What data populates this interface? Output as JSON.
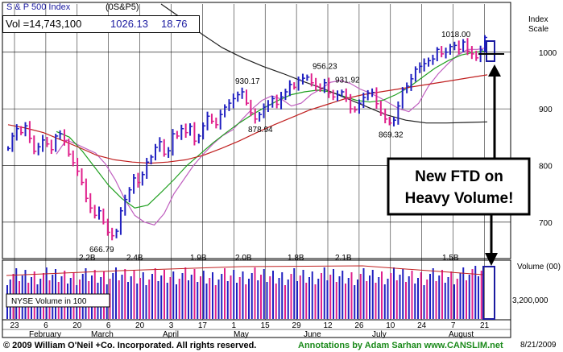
{
  "header": {
    "index_name": "S & P 500 Index",
    "symbol": "(0S&P5)",
    "volume_label": "Vol =14,743,100",
    "last_price": "1026.13",
    "change": "18.76",
    "scale_title": "Index\nScale"
  },
  "annotation": {
    "callout": "New FTD on\nHeavy Volume!"
  },
  "volume_box": {
    "legend": "NYSE Volume in 100",
    "scale_title": "Volume (00)",
    "scale_value": "3,200,000"
  },
  "footer": {
    "copyright": "© 2009 William O'Neil +Co. Incorporated. All rights reserved.",
    "annotations": "Annotations by Adam Sarhan www.CANSLIM.net",
    "date": "8/21/2009"
  },
  "colors": {
    "up_bar": "#2020c0",
    "down_bar": "#e0208c",
    "ma_50": "#20a020",
    "ma_200": "#c02020",
    "ma_10": "#c060c0",
    "ma_long": "#202020",
    "annotation": "#000000"
  },
  "chart_data": [
    {
      "type": "ohlc",
      "title": "S & P 500 Index",
      "y_axis_title": "Index Scale",
      "y_ticks": [
        700,
        800,
        900,
        1000
      ],
      "ylim": [
        640,
        1085
      ],
      "x_ticks": [
        "23",
        "6",
        "20",
        "6",
        "20",
        "3",
        "17",
        "1",
        "15",
        "29",
        "12",
        "26",
        "10",
        "24",
        "7",
        "21"
      ],
      "month_labels": [
        "February",
        "March",
        "April",
        "May",
        "June",
        "July",
        "August"
      ],
      "price_labels": [
        {
          "text": "666.79",
          "value": 666.79
        },
        {
          "text": "930.17",
          "value": 930.17
        },
        {
          "text": "878.94",
          "value": 878.94
        },
        {
          "text": "956.23",
          "value": 956.23
        },
        {
          "text": "931.92",
          "value": 931.92
        },
        {
          "text": "869.32",
          "value": 869.32
        },
        {
          "text": "1018.00",
          "value": 1018.0
        }
      ],
      "series": [
        {
          "name": "close",
          "values": [
            830,
            852,
            865,
            858,
            870,
            848,
            825,
            833,
            845,
            838,
            828,
            852,
            856,
            843,
            820,
            805,
            790,
            770,
            742,
            725,
            712,
            720,
            700,
            682,
            676,
            684,
            720,
            740,
            757,
            778,
            770,
            784,
            806,
            815,
            832,
            842,
            820,
            826,
            856,
            852,
            865,
            858,
            869,
            843,
            852,
            870,
            887,
            878,
            872,
            890,
            903,
            910,
            918,
            925,
            930,
            910,
            893,
            882,
            890,
            903,
            907,
            918,
            908,
            921,
            930,
            943,
            938,
            951,
            954,
            956,
            946,
            940,
            935,
            946,
            928,
            921,
            925,
            930,
            918,
            900,
            898,
            910,
            920,
            928,
            929,
            909,
            893,
            882,
            875,
            880,
            905,
            934,
            940,
            953,
            970,
            975,
            980,
            985,
            988,
            1005,
            997,
            1000,
            1010,
            1012,
            1005,
            1018,
            1002,
            997,
            990,
            1004,
            1026
          ]
        },
        {
          "name": "10-day MA",
          "values": [
            820,
            845,
            838,
            830,
            822,
            803,
            775,
            740,
            712,
            700,
            695,
            715,
            750,
            775,
            800,
            820,
            838,
            853,
            863,
            882,
            900,
            915,
            923,
            917,
            905,
            910,
            925,
            935,
            947,
            950,
            945,
            935,
            928,
            920,
            910,
            900,
            895,
            910,
            940,
            962,
            980,
            995,
            1005,
            1005,
            1008
          ]
        },
        {
          "name": "50-day MA",
          "values": [
            860,
            850,
            825,
            795,
            765,
            742,
            725,
            730,
            752,
            775,
            800,
            820,
            840,
            858,
            875,
            890,
            903,
            915,
            925,
            930,
            933,
            930,
            922,
            915,
            912,
            915,
            925,
            938,
            955,
            972,
            985,
            995,
            1000,
            1002
          ]
        },
        {
          "name": "200-day MA",
          "values": [
            872,
            866,
            858,
            845,
            832,
            818,
            810,
            806,
            804,
            806,
            810,
            818,
            830,
            843,
            858,
            872,
            885,
            898,
            908,
            918,
            925,
            930,
            935,
            940,
            945,
            950,
            955,
            960
          ]
        },
        {
          "name": "long-term MA",
          "values": [
            1085,
            1060,
            1032,
            1008,
            990,
            975,
            962,
            948,
            935,
            920,
            905,
            890,
            880,
            875,
            875,
            876,
            877
          ]
        }
      ],
      "callout": {
        "text": "New FTD on Heavy Volume!"
      }
    },
    {
      "type": "bar",
      "title": "NYSE Volume in 100",
      "y_axis_title": "Volume (00)",
      "y_ticks": [
        "3,200,000"
      ],
      "volume_labels": [
        "2.2B",
        "2.4B",
        "1.9B",
        "2.0B",
        "1.8B",
        "2.1B",
        "1.5B"
      ]
    }
  ]
}
